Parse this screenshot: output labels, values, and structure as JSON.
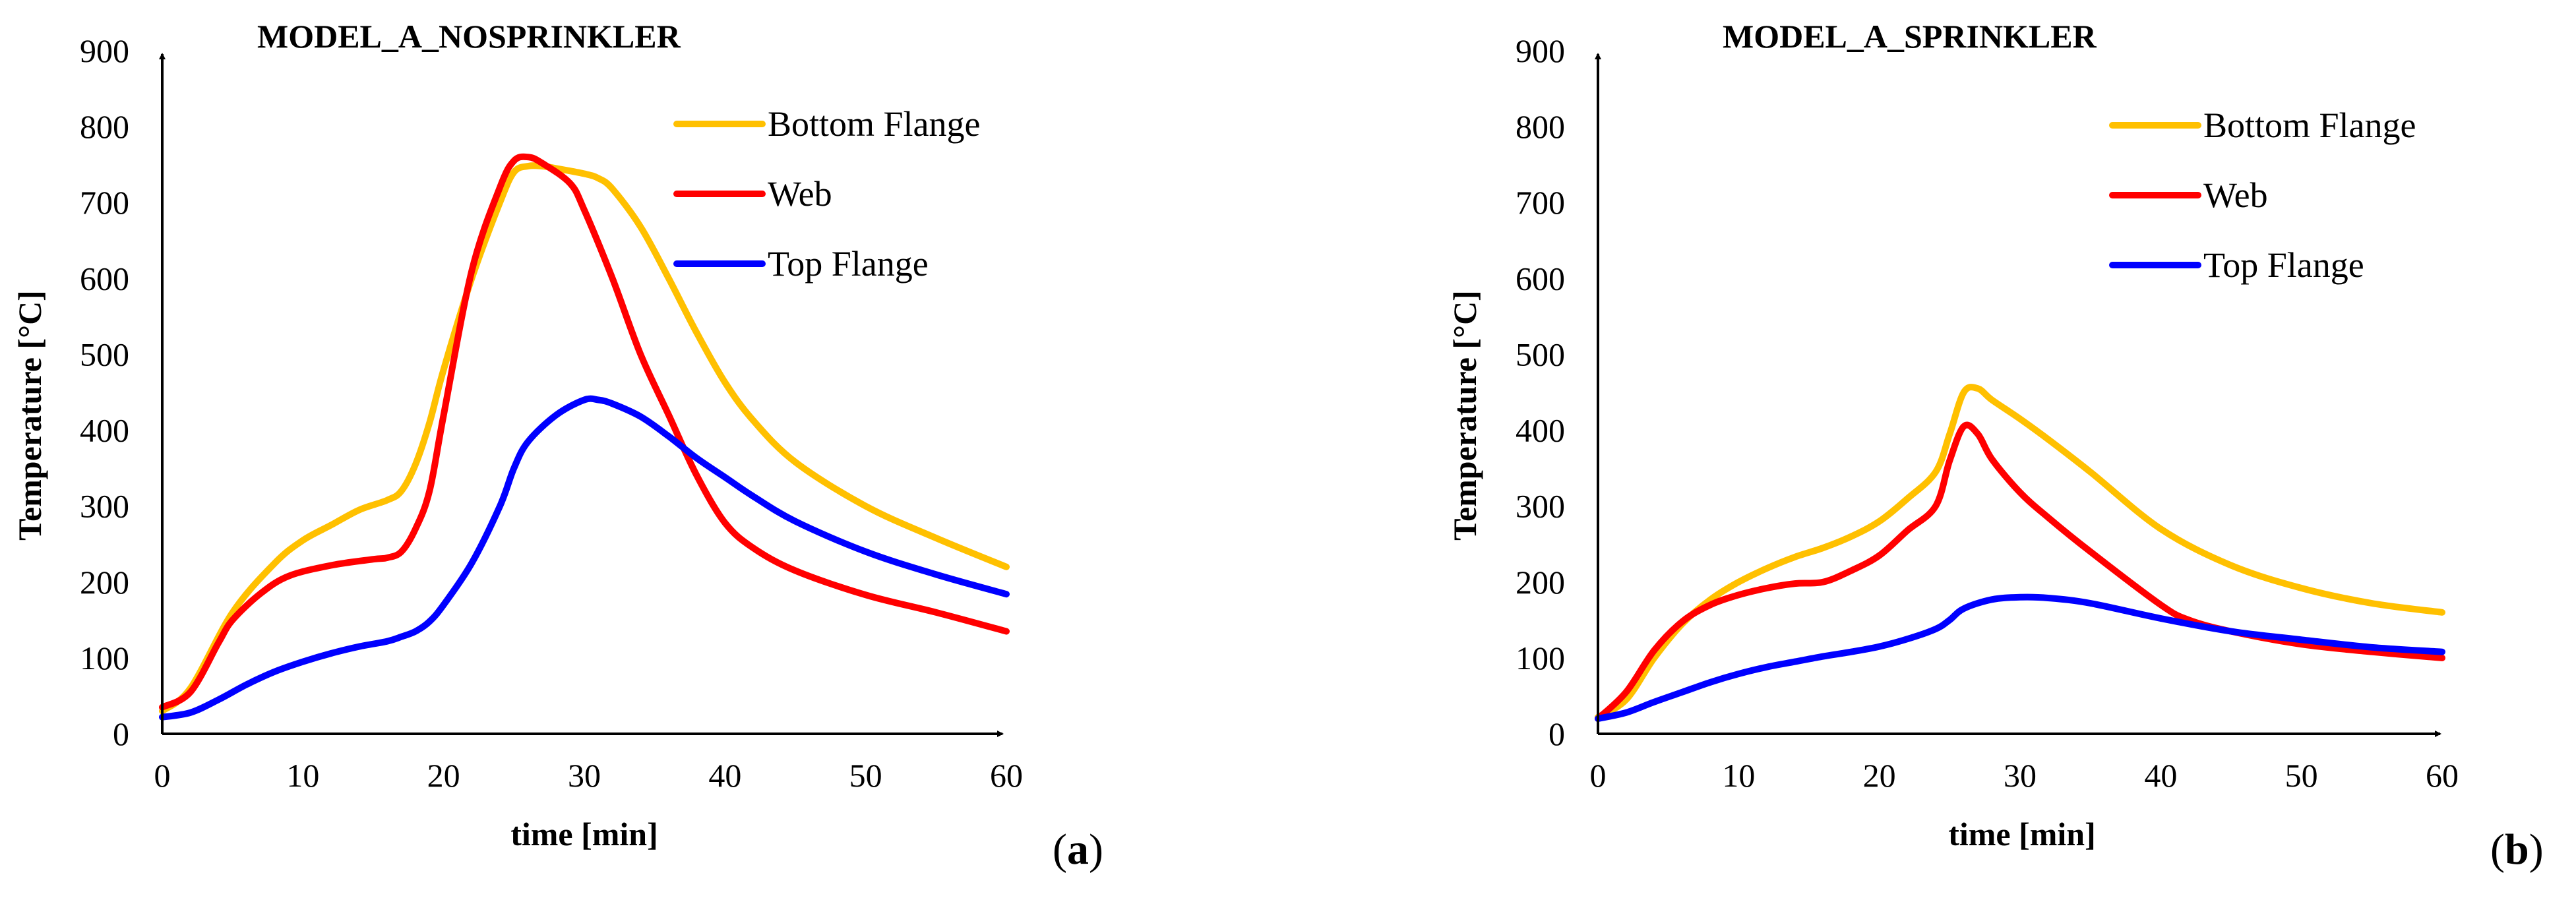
{
  "chart_data": [
    {
      "type": "line",
      "title": "MODEL_A_NOSPRINKLER",
      "panel_label": "a",
      "xlabel": "time  [min]",
      "ylabel": "Temperature  [°C]",
      "xlim": [
        0,
        60
      ],
      "ylim": [
        0,
        900
      ],
      "xticks": [
        0,
        10,
        20,
        30,
        40,
        50,
        60
      ],
      "yticks": [
        0,
        100,
        200,
        300,
        400,
        500,
        600,
        700,
        800,
        900
      ],
      "legend_position": "top-right",
      "series": [
        {
          "name": "Bottom Flange",
          "color": "#FFC000",
          "points": [
            [
              0,
              30
            ],
            [
              2,
              60
            ],
            [
              5,
              160
            ],
            [
              8,
              225
            ],
            [
              10,
              255
            ],
            [
              12,
              275
            ],
            [
              14,
              295
            ],
            [
              16,
              308
            ],
            [
              17,
              320
            ],
            [
              18,
              355
            ],
            [
              19,
              410
            ],
            [
              20,
              480
            ],
            [
              22,
              600
            ],
            [
              24,
              700
            ],
            [
              25,
              740
            ],
            [
              26,
              748
            ],
            [
              27,
              748
            ],
            [
              28,
              745
            ],
            [
              30,
              738
            ],
            [
              31,
              732
            ],
            [
              32,
              718
            ],
            [
              34,
              668
            ],
            [
              36,
              600
            ],
            [
              38,
              528
            ],
            [
              40,
              463
            ],
            [
              42,
              413
            ],
            [
              45,
              358
            ],
            [
              50,
              300
            ],
            [
              55,
              258
            ],
            [
              60,
              220
            ]
          ]
        },
        {
          "name": "Web",
          "color": "#FF0000",
          "points": [
            [
              0,
              35
            ],
            [
              2,
              55
            ],
            [
              4,
              120
            ],
            [
              5,
              150
            ],
            [
              7,
              185
            ],
            [
              9,
              208
            ],
            [
              12,
              222
            ],
            [
              15,
              230
            ],
            [
              16,
              232
            ],
            [
              17,
              240
            ],
            [
              18,
              270
            ],
            [
              19,
              320
            ],
            [
              20,
              420
            ],
            [
              22,
              610
            ],
            [
              24,
              720
            ],
            [
              25,
              755
            ],
            [
              26,
              760
            ],
            [
              27,
              752
            ],
            [
              29,
              725
            ],
            [
              30,
              690
            ],
            [
              32,
              600
            ],
            [
              34,
              500
            ],
            [
              36,
              420
            ],
            [
              38,
              340
            ],
            [
              40,
              278
            ],
            [
              42,
              245
            ],
            [
              45,
              215
            ],
            [
              50,
              183
            ],
            [
              55,
              160
            ],
            [
              60,
              135
            ]
          ]
        },
        {
          "name": "Top Flange",
          "color": "#0000FF",
          "points": [
            [
              0,
              22
            ],
            [
              2,
              28
            ],
            [
              4,
              45
            ],
            [
              6,
              65
            ],
            [
              8,
              82
            ],
            [
              10,
              95
            ],
            [
              12,
              106
            ],
            [
              14,
              115
            ],
            [
              16,
              122
            ],
            [
              17,
              128
            ],
            [
              18,
              135
            ],
            [
              19,
              148
            ],
            [
              20,
              170
            ],
            [
              22,
              225
            ],
            [
              24,
              300
            ],
            [
              25,
              350
            ],
            [
              26,
              385
            ],
            [
              28,
              420
            ],
            [
              30,
              440
            ],
            [
              31,
              440
            ],
            [
              32,
              435
            ],
            [
              34,
              418
            ],
            [
              36,
              392
            ],
            [
              38,
              363
            ],
            [
              40,
              338
            ],
            [
              42,
              313
            ],
            [
              45,
              280
            ],
            [
              50,
              240
            ],
            [
              55,
              210
            ],
            [
              60,
              184
            ]
          ]
        }
      ]
    },
    {
      "type": "line",
      "title": "MODEL_A_SPRINKLER",
      "panel_label": "b",
      "xlabel": "time  [min]",
      "ylabel": "Temperature  [°C]",
      "xlim": [
        0,
        60
      ],
      "ylim": [
        0,
        900
      ],
      "xticks": [
        0,
        10,
        20,
        30,
        40,
        50,
        60
      ],
      "yticks": [
        0,
        100,
        200,
        300,
        400,
        500,
        600,
        700,
        800,
        900
      ],
      "legend_position": "top-right",
      "series": [
        {
          "name": "Bottom Flange",
          "color": "#FFC000",
          "points": [
            [
              0,
              22
            ],
            [
              2,
              45
            ],
            [
              4,
              100
            ],
            [
              6,
              145
            ],
            [
              8,
              177
            ],
            [
              10,
              200
            ],
            [
              12,
              218
            ],
            [
              14,
              233
            ],
            [
              16,
              245
            ],
            [
              18,
              260
            ],
            [
              20,
              280
            ],
            [
              22,
              310
            ],
            [
              24,
              345
            ],
            [
              25,
              395
            ],
            [
              26,
              450
            ],
            [
              27,
              455
            ],
            [
              28,
              440
            ],
            [
              30,
              415
            ],
            [
              32,
              388
            ],
            [
              35,
              345
            ],
            [
              40,
              270
            ],
            [
              45,
              222
            ],
            [
              50,
              192
            ],
            [
              55,
              172
            ],
            [
              60,
              160
            ]
          ]
        },
        {
          "name": "Web",
          "color": "#FF0000",
          "points": [
            [
              0,
              20
            ],
            [
              2,
              55
            ],
            [
              4,
              110
            ],
            [
              6,
              148
            ],
            [
              8,
              170
            ],
            [
              10,
              183
            ],
            [
              12,
              192
            ],
            [
              14,
              198
            ],
            [
              16,
              200
            ],
            [
              18,
              215
            ],
            [
              20,
              235
            ],
            [
              22,
              268
            ],
            [
              24,
              300
            ],
            [
              25,
              360
            ],
            [
              26,
              405
            ],
            [
              27,
              395
            ],
            [
              28,
              362
            ],
            [
              30,
              318
            ],
            [
              32,
              285
            ],
            [
              35,
              240
            ],
            [
              40,
              170
            ],
            [
              42,
              150
            ],
            [
              45,
              135
            ],
            [
              50,
              118
            ],
            [
              55,
              108
            ],
            [
              60,
              100
            ]
          ]
        },
        {
          "name": "Top Flange",
          "color": "#0000FF",
          "points": [
            [
              0,
              20
            ],
            [
              2,
              28
            ],
            [
              4,
              42
            ],
            [
              6,
              55
            ],
            [
              8,
              68
            ],
            [
              10,
              79
            ],
            [
              12,
              88
            ],
            [
              14,
              95
            ],
            [
              16,
              102
            ],
            [
              18,
              108
            ],
            [
              20,
              115
            ],
            [
              22,
              125
            ],
            [
              24,
              138
            ],
            [
              25,
              150
            ],
            [
              26,
              165
            ],
            [
              28,
              177
            ],
            [
              30,
              180
            ],
            [
              32,
              179
            ],
            [
              35,
              172
            ],
            [
              40,
              152
            ],
            [
              45,
              135
            ],
            [
              50,
              124
            ],
            [
              55,
              114
            ],
            [
              60,
              108
            ]
          ]
        }
      ]
    }
  ]
}
